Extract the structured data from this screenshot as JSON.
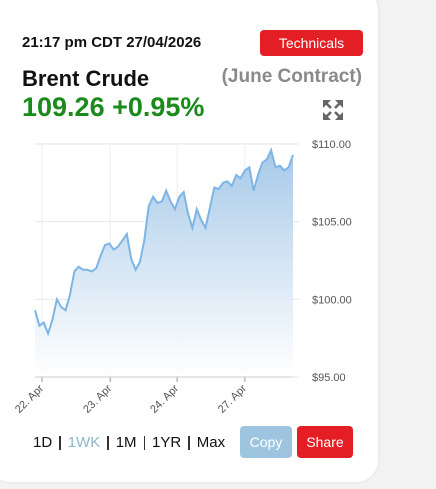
{
  "header": {
    "timestamp": "21:17 pm CDT 27/04/2026",
    "technicals": "Technicals",
    "title": "Brent Crude",
    "contract": "(June Contract)",
    "price": "109.26",
    "change": "+0.95%"
  },
  "chart_data": {
    "type": "area",
    "color": "#7cb5e6",
    "values": [
      99.3,
      98.3,
      98.5,
      97.8,
      98.7,
      100.0,
      99.5,
      99.3,
      100.3,
      101.8,
      102.1,
      101.9,
      101.9,
      101.8,
      102.0,
      102.8,
      103.5,
      103.6,
      103.2,
      103.4,
      103.8,
      104.2,
      102.6,
      101.9,
      102.4,
      103.8,
      106.0,
      106.6,
      106.2,
      106.3,
      107.0,
      106.3,
      105.8,
      106.6,
      106.9,
      105.5,
      104.6,
      105.8,
      105.1,
      104.6,
      105.9,
      107.2,
      107.1,
      107.5,
      107.6,
      107.3,
      108.0,
      107.8,
      108.3,
      108.5,
      107.0,
      108.0,
      108.8,
      109.0,
      109.6,
      108.5,
      108.6,
      108.3,
      108.5,
      109.3
    ],
    "xlim": [
      0,
      59
    ],
    "xticks": [
      {
        "value": 1.6,
        "label": "22. Apr"
      },
      {
        "value": 17.2,
        "label": "23. Apr"
      },
      {
        "value": 32.5,
        "label": "24. Apr"
      },
      {
        "value": 48,
        "label": "27. Apr"
      }
    ],
    "ylim": [
      95,
      110
    ],
    "yticks": [
      {
        "value": 95,
        "label": "$95.00"
      },
      {
        "value": 100,
        "label": "$100.00"
      },
      {
        "value": 105,
        "label": "$105.00"
      },
      {
        "value": 110,
        "label": "$110.00"
      }
    ],
    "grid": true
  },
  "controls": {
    "ranges": [
      "1D",
      "1WK",
      "1M",
      "1YR",
      "Max"
    ],
    "copy": "Copy",
    "share": "Share"
  }
}
